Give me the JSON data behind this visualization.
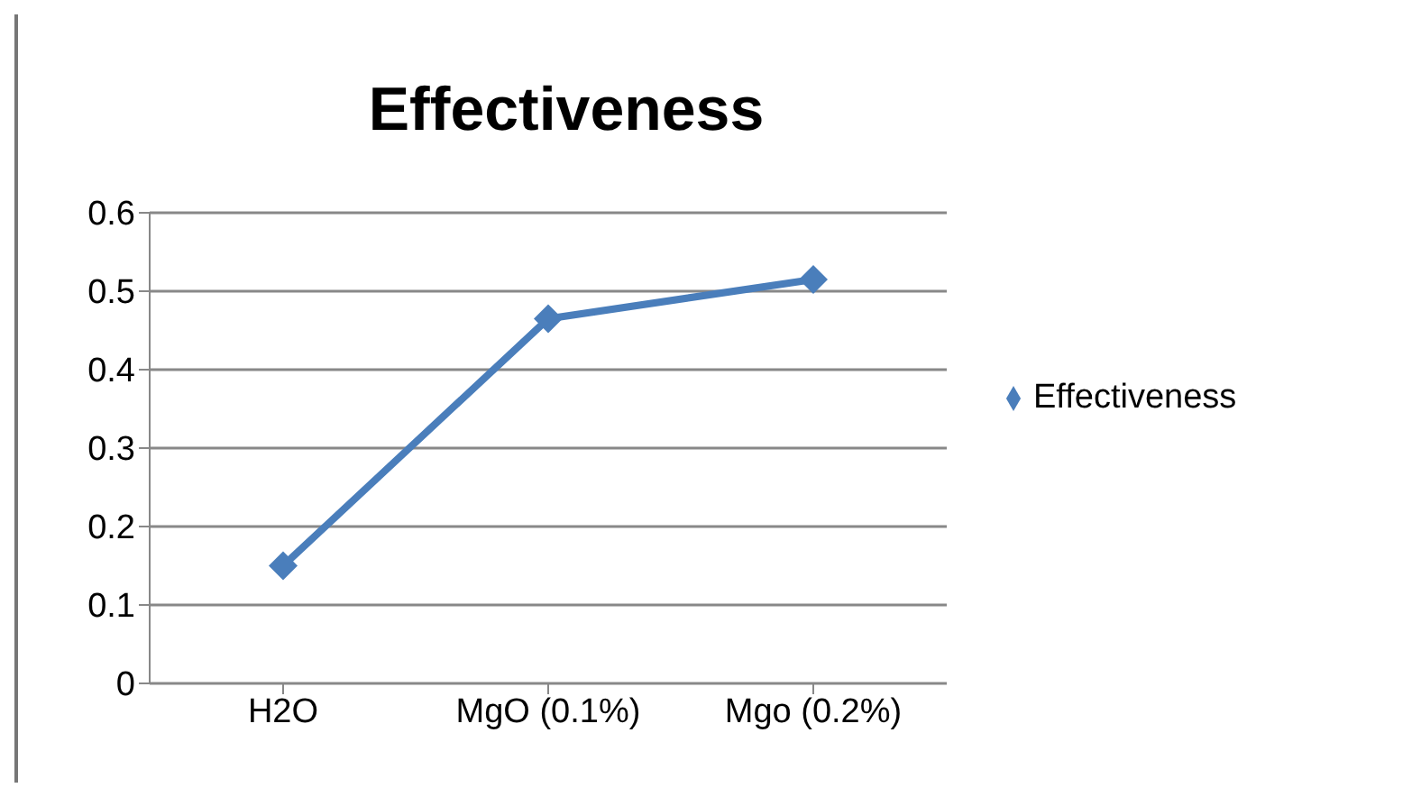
{
  "chart_data": {
    "type": "line",
    "title": "Effectiveness",
    "categories": [
      "H2O",
      "MgO (0.1%)",
      "Mgo (0.2%)"
    ],
    "series": [
      {
        "name": "Effectiveness",
        "color": "#4a7ebb",
        "values": [
          0.15,
          0.465,
          0.515
        ]
      }
    ],
    "ylim": [
      0,
      0.6
    ],
    "yticks": [
      0,
      0.1,
      0.2,
      0.3,
      0.4,
      0.5,
      0.6
    ],
    "grid": "y",
    "legend": "right",
    "marker": "diamond"
  }
}
